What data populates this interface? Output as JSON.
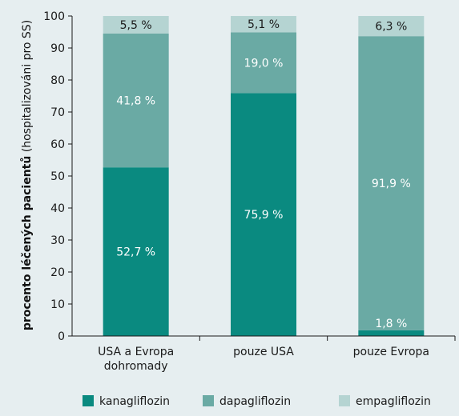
{
  "chart_data": {
    "type": "bar",
    "stacked": true,
    "categories": [
      [
        "USA a Evropa",
        "dohromady"
      ],
      [
        "pouze USA"
      ],
      [
        "pouze Evropa"
      ]
    ],
    "series": [
      {
        "name": "kanagliflozin",
        "values": [
          52.7,
          75.9,
          1.8
        ],
        "labels": [
          "52,7 %",
          "75,9 %",
          "1,8 %"
        ],
        "color": "#0a8a80",
        "label_color": "#ffffff"
      },
      {
        "name": "dapagliflozin",
        "values": [
          41.8,
          19.0,
          91.9
        ],
        "labels": [
          "41,8 %",
          "19,0 %",
          "91,9 %"
        ],
        "color": "#6aaaa4",
        "label_color": "#ffffff"
      },
      {
        "name": "empagliflozin",
        "values": [
          5.5,
          5.1,
          6.3
        ],
        "labels": [
          "5,5 %",
          "5,1 %",
          "6,3 %"
        ],
        "color": "#b5d4d2",
        "label_color": "#1a1a1a"
      }
    ],
    "ylabel_bold": "procento léčených pacientů",
    "ylabel_rest": " (hospitalizováni pro SS)",
    "ylim": [
      0,
      100
    ],
    "yticks": [
      0,
      10,
      20,
      30,
      40,
      50,
      60,
      70,
      80,
      90,
      100
    ],
    "legend_position": "bottom",
    "grid": false
  }
}
